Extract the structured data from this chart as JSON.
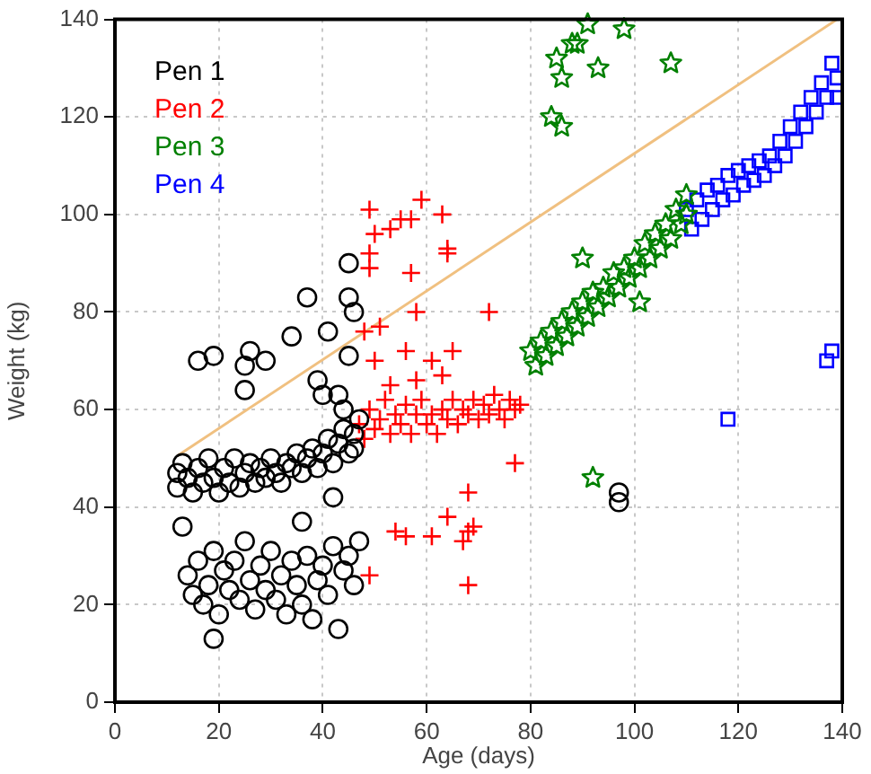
{
  "chart_data": {
    "type": "scatter",
    "xlabel": "Age (days)",
    "ylabel": "Weight (kg)",
    "xlim": [
      0,
      140
    ],
    "ylim": [
      0,
      140
    ],
    "xticks": [
      0,
      20,
      40,
      60,
      80,
      100,
      120,
      140
    ],
    "yticks": [
      0,
      20,
      40,
      60,
      80,
      100,
      120,
      140
    ],
    "grid": true,
    "legend": "top left",
    "series": [
      {
        "name": "Pen 1",
        "color": "#000000",
        "marker": "circle",
        "x": [
          12,
          12,
          13,
          14,
          15,
          16,
          17,
          18,
          19,
          20,
          21,
          22,
          23,
          24,
          25,
          26,
          27,
          28,
          29,
          30,
          31,
          32,
          33,
          34,
          35,
          36,
          37,
          38,
          39,
          40,
          41,
          42,
          43,
          44,
          45,
          46,
          47,
          46,
          13,
          14,
          15,
          16,
          17,
          18,
          19,
          19,
          20,
          21,
          22,
          23,
          24,
          25,
          26,
          27,
          28,
          29,
          30,
          31,
          32,
          33,
          34,
          35,
          36,
          36,
          37,
          38,
          39,
          40,
          41,
          42,
          43,
          44,
          45,
          46,
          47,
          42,
          16,
          19,
          25,
          26,
          29,
          25,
          34,
          37,
          41,
          39,
          40,
          43,
          45,
          45,
          46,
          45,
          44,
          97,
          97
        ],
        "values": [
          47,
          44,
          49,
          46,
          43,
          48,
          45,
          50,
          46,
          43,
          48,
          45,
          50,
          44,
          47,
          49,
          45,
          48,
          46,
          50,
          47,
          45,
          49,
          48,
          51,
          47,
          50,
          52,
          48,
          51,
          54,
          49,
          53,
          56,
          51,
          55,
          58,
          52,
          36,
          26,
          22,
          29,
          20,
          24,
          13,
          31,
          18,
          27,
          23,
          29,
          21,
          33,
          25,
          19,
          28,
          23,
          31,
          21,
          26,
          18,
          29,
          24,
          37,
          20,
          30,
          17,
          25,
          28,
          22,
          32,
          15,
          27,
          30,
          24,
          33,
          42,
          70,
          71,
          69,
          72,
          70,
          64,
          75,
          83,
          76,
          66,
          63,
          63,
          90,
          83,
          80,
          71,
          60,
          43,
          41
        ]
      },
      {
        "name": "Pen 2",
        "color": "#ff0000",
        "marker": "cross",
        "x": [
          47,
          48,
          49,
          50,
          51,
          52,
          53,
          54,
          55,
          56,
          57,
          58,
          59,
          60,
          61,
          62,
          63,
          64,
          65,
          66,
          67,
          68,
          69,
          70,
          71,
          72,
          73,
          74,
          75,
          76,
          77,
          78,
          49,
          50,
          53,
          55,
          59,
          57,
          63,
          64,
          49,
          64,
          49,
          57,
          58,
          72,
          48,
          51,
          56,
          65,
          50,
          61,
          53,
          58,
          63,
          77,
          68,
          64,
          69,
          54,
          56,
          61,
          67,
          49,
          68,
          68
        ],
        "values": [
          57,
          54,
          60,
          56,
          58,
          62,
          55,
          59,
          57,
          61,
          55,
          59,
          62,
          57,
          59,
          55,
          60,
          58,
          62,
          57,
          60,
          59,
          62,
          58,
          61,
          59,
          63,
          60,
          58,
          62,
          60,
          61,
          101,
          96,
          97,
          99,
          103,
          99,
          100,
          93,
          92,
          92,
          89,
          88,
          80,
          80,
          76,
          77,
          72,
          72,
          70,
          70,
          65,
          66,
          67,
          49,
          43,
          38,
          36,
          35,
          34,
          34,
          33,
          26,
          24,
          35
        ]
      },
      {
        "name": "Pen 3",
        "color": "#008000",
        "marker": "star",
        "x": [
          80,
          81,
          82,
          83,
          84,
          85,
          86,
          87,
          88,
          89,
          90,
          91,
          92,
          93,
          94,
          95,
          96,
          97,
          98,
          99,
          100,
          101,
          102,
          103,
          104,
          105,
          106,
          107,
          108,
          109,
          110,
          110,
          84,
          86,
          85,
          86,
          88,
          89,
          91,
          93,
          98,
          107,
          90,
          101,
          92
        ],
        "values": [
          72,
          69,
          74,
          71,
          76,
          73,
          78,
          75,
          80,
          77,
          82,
          79,
          84,
          81,
          85,
          83,
          88,
          85,
          89,
          87,
          91,
          89,
          94,
          91,
          96,
          93,
          98,
          95,
          101,
          98,
          104,
          100,
          120,
          118,
          132,
          128,
          135,
          135,
          139,
          130,
          138,
          131,
          91,
          82,
          46
        ]
      },
      {
        "name": "Pen 4",
        "color": "#0000ff",
        "marker": "square",
        "x": [
          110,
          111,
          112,
          113,
          114,
          115,
          116,
          117,
          118,
          119,
          120,
          121,
          122,
          123,
          124,
          125,
          126,
          127,
          128,
          129,
          130,
          131,
          132,
          133,
          134,
          135,
          136,
          137,
          138,
          139,
          139,
          118,
          137,
          138
        ],
        "values": [
          101,
          97,
          103,
          99,
          105,
          101,
          106,
          103,
          108,
          104,
          109,
          106,
          110,
          107,
          111,
          108,
          112,
          110,
          115,
          112,
          118,
          115,
          121,
          118,
          124,
          121,
          127,
          124,
          131,
          128,
          124,
          58,
          70,
          72
        ]
      },
      {
        "type": "line",
        "color": "#f0c080",
        "marker": "none",
        "x": [
          12,
          139
        ],
        "values": [
          50.5,
          140
        ]
      }
    ]
  }
}
